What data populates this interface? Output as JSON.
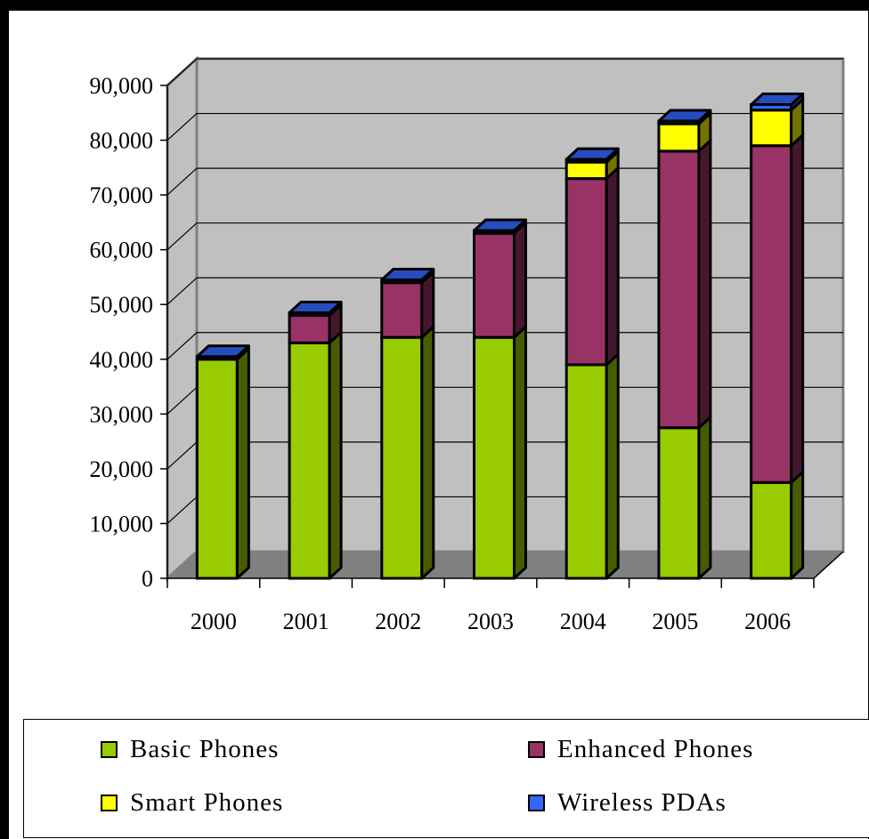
{
  "chart_data": {
    "type": "bar",
    "stacked": true,
    "three_d": true,
    "categories": [
      "2000",
      "2001",
      "2002",
      "2003",
      "2004",
      "2005",
      "2006"
    ],
    "series": [
      {
        "name": "Basic Phones",
        "color": "#99cc00",
        "values": [
          40000,
          43000,
          44000,
          44000,
          39000,
          27500,
          17500
        ]
      },
      {
        "name": "Enhanced Phones",
        "color": "#993366",
        "values": [
          0,
          5000,
          10000,
          19000,
          34000,
          50500,
          61500
        ]
      },
      {
        "name": "Smart Phones",
        "color": "#ffff00",
        "values": [
          0,
          0,
          0,
          0,
          3000,
          5000,
          6500
        ]
      },
      {
        "name": "Wireless PDAs",
        "color": "#3366ff",
        "values": [
          500,
          500,
          500,
          500,
          500,
          500,
          1000
        ]
      }
    ],
    "y_ticks": [
      "0",
      "10,000",
      "20,000",
      "30,000",
      "40,000",
      "50,000",
      "60,000",
      "70,000",
      "80,000",
      "90,000"
    ],
    "ylim": [
      0,
      90000
    ],
    "grid": true,
    "legend_position": "bottom",
    "title": "",
    "xlabel": "",
    "ylabel": ""
  }
}
